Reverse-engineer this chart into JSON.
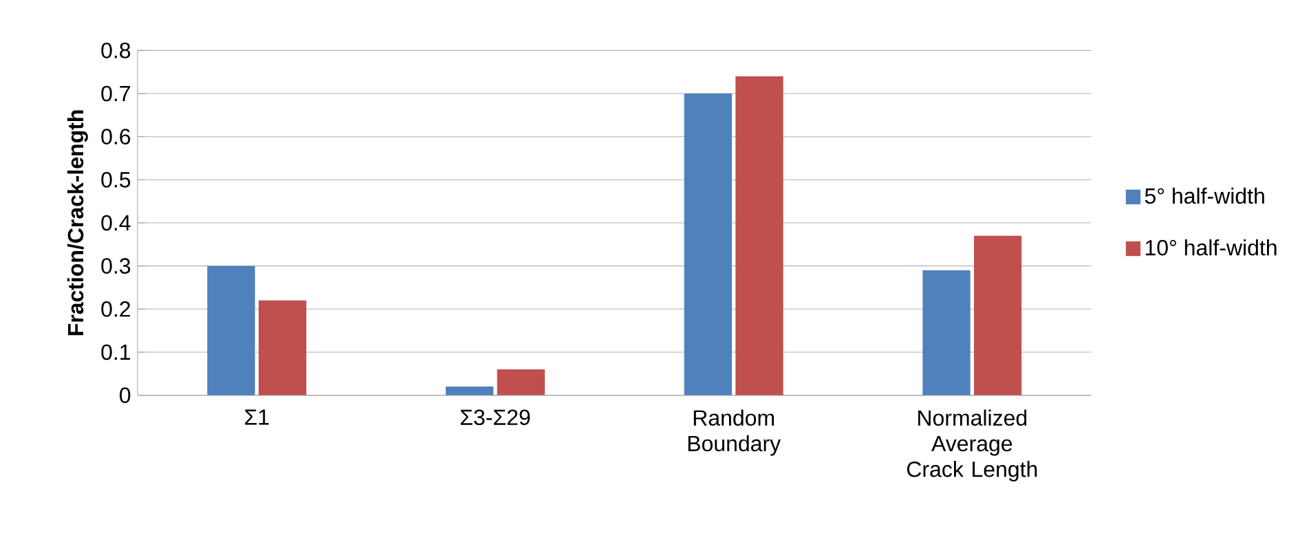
{
  "chart_data": {
    "type": "bar",
    "ylabel": "Fraction/Crack-length",
    "categories": [
      "Σ1",
      "Σ3-Σ29",
      "Random Boundary",
      "Normalized Average Crack Length"
    ],
    "series": [
      {
        "name": "5° half-width",
        "color": "#4f81bd",
        "values": [
          0.3,
          0.02,
          0.7,
          0.29
        ]
      },
      {
        "name": "10° half-width",
        "color": "#c0504d",
        "values": [
          0.22,
          0.06,
          0.74,
          0.37
        ]
      }
    ],
    "ylim": [
      0,
      0.8
    ],
    "yticks": [
      0,
      0.1,
      0.2,
      0.3,
      0.4,
      0.5,
      0.6,
      0.7,
      0.8
    ],
    "grid": "y",
    "legend": "right"
  }
}
